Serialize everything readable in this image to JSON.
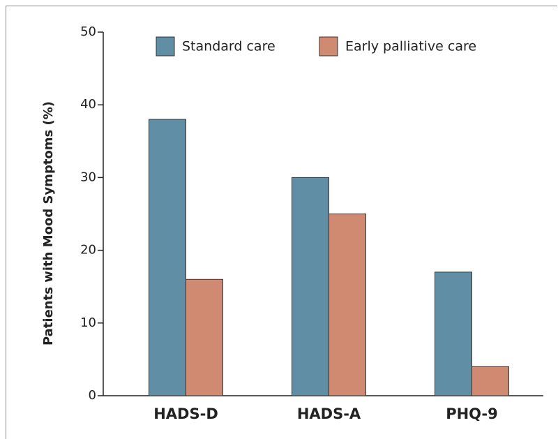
{
  "chart_data": {
    "type": "bar",
    "y_label": "Patients with Mood Symptoms (%)",
    "categories": [
      "HADS-D",
      "HADS-A",
      "PHQ-9"
    ],
    "series": [
      {
        "name": "Standard care",
        "color": "#5f8ea5",
        "values": [
          38,
          30,
          17
        ]
      },
      {
        "name": "Early palliative care",
        "color": "#d08a72",
        "values": [
          16,
          25,
          4
        ]
      }
    ],
    "ylim": [
      0,
      50
    ],
    "yticks": [
      0,
      10,
      20,
      30,
      40,
      50
    ]
  }
}
